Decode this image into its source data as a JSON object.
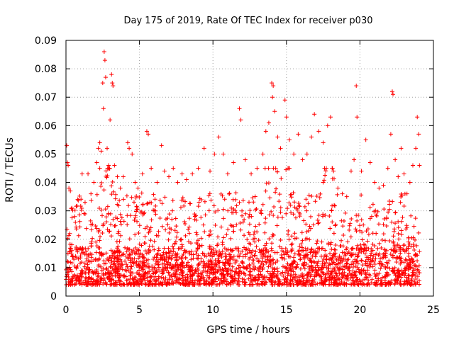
{
  "chart_data": {
    "type": "scatter",
    "title": "Day 175 of 2019, Rate Of TEC Index for receiver p030",
    "xlabel": "GPS time / hours",
    "ylabel": "ROTI / TECUs",
    "xlim": [
      0,
      25
    ],
    "ylim": [
      0,
      0.09
    ],
    "xticks": [
      "0",
      "5",
      "10",
      "15",
      "20",
      "25"
    ],
    "yticks": [
      "0",
      "0.01",
      "0.02",
      "0.03",
      "0.04",
      "0.05",
      "0.06",
      "0.07",
      "0.08",
      "0.09"
    ],
    "grid": true,
    "marker": "+",
    "color": "#ff0000",
    "series": [
      {
        "points": [
          [
            0.05,
            0.053
          ],
          [
            0.1,
            0.047
          ],
          [
            0.15,
            0.046
          ],
          [
            0.2,
            0.038
          ],
          [
            0.3,
            0.037
          ],
          [
            0.4,
            0.031
          ],
          [
            0.6,
            0.028
          ],
          [
            0.8,
            0.034
          ],
          [
            1.1,
            0.043
          ],
          [
            1.3,
            0.033
          ],
          [
            1.5,
            0.043
          ],
          [
            1.7,
            0.036
          ],
          [
            1.9,
            0.04
          ],
          [
            2.1,
            0.047
          ],
          [
            2.2,
            0.052
          ],
          [
            2.3,
            0.054
          ],
          [
            2.4,
            0.051
          ],
          [
            2.5,
            0.075
          ],
          [
            2.55,
            0.066
          ],
          [
            2.6,
            0.086
          ],
          [
            2.65,
            0.083
          ],
          [
            2.7,
            0.077
          ],
          [
            2.8,
            0.052
          ],
          [
            2.9,
            0.046
          ],
          [
            3.0,
            0.062
          ],
          [
            3.1,
            0.078
          ],
          [
            3.15,
            0.075
          ],
          [
            3.2,
            0.074
          ],
          [
            3.3,
            0.046
          ],
          [
            3.5,
            0.042
          ],
          [
            3.7,
            0.038
          ],
          [
            3.9,
            0.042
          ],
          [
            4.2,
            0.054
          ],
          [
            4.3,
            0.052
          ],
          [
            4.5,
            0.05
          ],
          [
            4.7,
            0.04
          ],
          [
            4.9,
            0.038
          ],
          [
            5.2,
            0.043
          ],
          [
            5.5,
            0.058
          ],
          [
            5.6,
            0.057
          ],
          [
            5.8,
            0.045
          ],
          [
            6.2,
            0.04
          ],
          [
            6.5,
            0.053
          ],
          [
            6.7,
            0.044
          ],
          [
            7.0,
            0.042
          ],
          [
            7.3,
            0.045
          ],
          [
            7.6,
            0.04
          ],
          [
            7.9,
            0.043
          ],
          [
            8.2,
            0.041
          ],
          [
            8.6,
            0.043
          ],
          [
            9.0,
            0.045
          ],
          [
            9.4,
            0.052
          ],
          [
            9.8,
            0.044
          ],
          [
            10.1,
            0.05
          ],
          [
            10.4,
            0.056
          ],
          [
            10.7,
            0.05
          ],
          [
            11.0,
            0.043
          ],
          [
            11.4,
            0.047
          ],
          [
            11.8,
            0.066
          ],
          [
            11.9,
            0.062
          ],
          [
            12.2,
            0.048
          ],
          [
            12.6,
            0.043
          ],
          [
            13.0,
            0.045
          ],
          [
            13.4,
            0.05
          ],
          [
            13.6,
            0.058
          ],
          [
            13.8,
            0.061
          ],
          [
            14.0,
            0.075
          ],
          [
            14.05,
            0.07
          ],
          [
            14.1,
            0.074
          ],
          [
            14.2,
            0.065
          ],
          [
            14.4,
            0.056
          ],
          [
            14.6,
            0.052
          ],
          [
            14.9,
            0.069
          ],
          [
            15.0,
            0.063
          ],
          [
            15.2,
            0.055
          ],
          [
            15.5,
            0.05
          ],
          [
            15.8,
            0.057
          ],
          [
            16.1,
            0.048
          ],
          [
            16.4,
            0.05
          ],
          [
            16.7,
            0.056
          ],
          [
            16.9,
            0.064
          ],
          [
            17.2,
            0.058
          ],
          [
            17.5,
            0.054
          ],
          [
            17.8,
            0.06
          ],
          [
            18.0,
            0.063
          ],
          [
            18.2,
            0.044
          ],
          [
            18.5,
            0.038
          ],
          [
            18.8,
            0.036
          ],
          [
            19.1,
            0.035
          ],
          [
            19.4,
            0.044
          ],
          [
            19.6,
            0.048
          ],
          [
            19.75,
            0.074
          ],
          [
            19.8,
            0.063
          ],
          [
            20.1,
            0.044
          ],
          [
            20.4,
            0.055
          ],
          [
            20.7,
            0.047
          ],
          [
            21.0,
            0.04
          ],
          [
            21.3,
            0.038
          ],
          [
            21.6,
            0.039
          ],
          [
            21.9,
            0.045
          ],
          [
            22.1,
            0.057
          ],
          [
            22.2,
            0.072
          ],
          [
            22.25,
            0.071
          ],
          [
            22.4,
            0.048
          ],
          [
            22.6,
            0.042
          ],
          [
            22.8,
            0.052
          ],
          [
            23.0,
            0.043
          ],
          [
            23.2,
            0.036
          ],
          [
            23.4,
            0.04
          ],
          [
            23.6,
            0.046
          ],
          [
            23.8,
            0.052
          ],
          [
            23.9,
            0.063
          ],
          [
            24.0,
            0.057
          ],
          [
            24.05,
            0.046
          ]
        ]
      }
    ]
  }
}
